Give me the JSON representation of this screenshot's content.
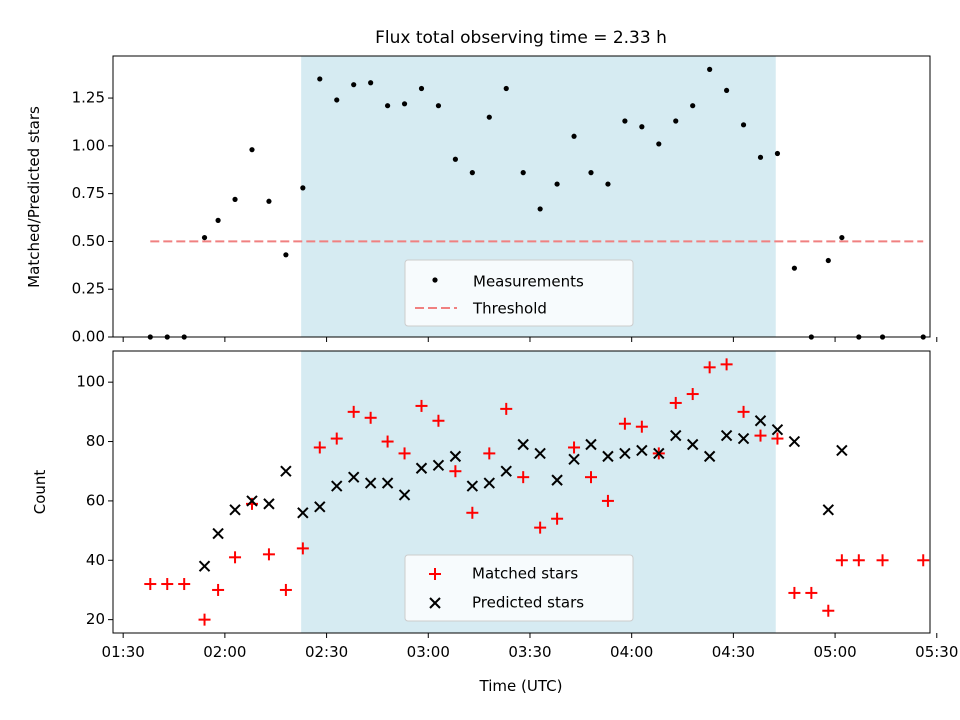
{
  "chart_data": {
    "type": "scatter",
    "title": "Flux total observing time = 2.33 h",
    "xlabel": "Time (UTC)",
    "xlim_minutes": [
      90,
      331
    ],
    "xticks": [
      {
        "minutes": 93,
        "label": "01:30"
      },
      {
        "minutes": 123,
        "label": "02:00"
      },
      {
        "minutes": 153,
        "label": "02:30"
      },
      {
        "minutes": 183,
        "label": "03:00"
      },
      {
        "minutes": 213,
        "label": "03:30"
      },
      {
        "minutes": 243,
        "label": "04:00"
      },
      {
        "minutes": 273,
        "label": "04:30"
      },
      {
        "minutes": 303,
        "label": "05:00"
      },
      {
        "minutes": 333,
        "label": "05:30"
      }
    ],
    "shaded_interval_minutes": [
      145.5,
      285.5
    ],
    "top": {
      "ylabel": "Matched/Predicted stars",
      "ylim": [
        0,
        1.47
      ],
      "yticks": [
        "0.00",
        "0.25",
        "0.50",
        "0.75",
        "1.00",
        "1.25"
      ],
      "threshold": {
        "value": 0.5,
        "x_range_minutes": [
          101,
          329
        ],
        "color": "#f08080"
      },
      "legend": {
        "position": "lower center",
        "entries": [
          "Measurements",
          "Threshold"
        ]
      },
      "points": [
        [
          101,
          0.0
        ],
        [
          106,
          0.0
        ],
        [
          111,
          0.0
        ],
        [
          117,
          0.52
        ],
        [
          121,
          0.61
        ],
        [
          126,
          0.72
        ],
        [
          131,
          0.98
        ],
        [
          136,
          0.71
        ],
        [
          141,
          0.43
        ],
        [
          146,
          0.78
        ],
        [
          151,
          1.35
        ],
        [
          156,
          1.24
        ],
        [
          161,
          1.32
        ],
        [
          166,
          1.33
        ],
        [
          171,
          1.21
        ],
        [
          176,
          1.22
        ],
        [
          181,
          1.3
        ],
        [
          186,
          1.21
        ],
        [
          191,
          0.93
        ],
        [
          196,
          0.86
        ],
        [
          201,
          1.15
        ],
        [
          206,
          1.3
        ],
        [
          211,
          0.86
        ],
        [
          216,
          0.67
        ],
        [
          221,
          0.8
        ],
        [
          226,
          1.05
        ],
        [
          231,
          0.86
        ],
        [
          236,
          0.8
        ],
        [
          241,
          1.13
        ],
        [
          246,
          1.1
        ],
        [
          251,
          1.01
        ],
        [
          256,
          1.13
        ],
        [
          261,
          1.21
        ],
        [
          266,
          1.4
        ],
        [
          271,
          1.29
        ],
        [
          276,
          1.11
        ],
        [
          281,
          0.94
        ],
        [
          286,
          0.96
        ],
        [
          291,
          0.36
        ],
        [
          296,
          0.0
        ],
        [
          301,
          0.4
        ],
        [
          305,
          0.52
        ],
        [
          310,
          0.0
        ],
        [
          317,
          0.0
        ],
        [
          329,
          0.0
        ]
      ]
    },
    "bottom": {
      "ylabel": "Count",
      "ylim": [
        15.5,
        110.5
      ],
      "yticks": [
        "20",
        "40",
        "60",
        "80",
        "100"
      ],
      "legend": {
        "position": "lower center",
        "entries": [
          "Matched stars",
          "Predicted stars"
        ]
      },
      "series": [
        {
          "name": "Matched stars",
          "marker": "+",
          "color": "#ff0000",
          "points": [
            [
              101,
              32
            ],
            [
              106,
              32
            ],
            [
              111,
              32
            ],
            [
              117,
              20
            ],
            [
              121,
              30
            ],
            [
              126,
              41
            ],
            [
              131,
              59
            ],
            [
              136,
              42
            ],
            [
              141,
              30
            ],
            [
              146,
              44
            ],
            [
              151,
              78
            ],
            [
              156,
              81
            ],
            [
              161,
              90
            ],
            [
              166,
              88
            ],
            [
              171,
              80
            ],
            [
              176,
              76
            ],
            [
              181,
              92
            ],
            [
              186,
              87
            ],
            [
              191,
              70
            ],
            [
              196,
              56
            ],
            [
              201,
              76
            ],
            [
              206,
              91
            ],
            [
              211,
              68
            ],
            [
              216,
              51
            ],
            [
              221,
              54
            ],
            [
              226,
              78
            ],
            [
              231,
              68
            ],
            [
              236,
              60
            ],
            [
              241,
              86
            ],
            [
              246,
              85
            ],
            [
              251,
              76
            ],
            [
              256,
              93
            ],
            [
              261,
              96
            ],
            [
              266,
              105
            ],
            [
              271,
              106
            ],
            [
              276,
              90
            ],
            [
              281,
              82
            ],
            [
              286,
              81
            ],
            [
              291,
              29
            ],
            [
              296,
              29
            ],
            [
              301,
              23
            ],
            [
              305,
              40
            ],
            [
              310,
              40
            ],
            [
              317,
              40
            ],
            [
              329,
              40
            ]
          ]
        },
        {
          "name": "Predicted stars",
          "marker": "x",
          "color": "#000000",
          "points": [
            [
              117,
              38
            ],
            [
              121,
              49
            ],
            [
              126,
              57
            ],
            [
              131,
              60
            ],
            [
              136,
              59
            ],
            [
              141,
              70
            ],
            [
              146,
              56
            ],
            [
              151,
              58
            ],
            [
              156,
              65
            ],
            [
              161,
              68
            ],
            [
              166,
              66
            ],
            [
              171,
              66
            ],
            [
              176,
              62
            ],
            [
              181,
              71
            ],
            [
              186,
              72
            ],
            [
              191,
              75
            ],
            [
              196,
              65
            ],
            [
              201,
              66
            ],
            [
              206,
              70
            ],
            [
              211,
              79
            ],
            [
              216,
              76
            ],
            [
              221,
              67
            ],
            [
              226,
              74
            ],
            [
              231,
              79
            ],
            [
              236,
              75
            ],
            [
              241,
              76
            ],
            [
              246,
              77
            ],
            [
              251,
              76
            ],
            [
              256,
              82
            ],
            [
              261,
              79
            ],
            [
              266,
              75
            ],
            [
              271,
              82
            ],
            [
              276,
              81
            ],
            [
              281,
              87
            ],
            [
              286,
              84
            ],
            [
              291,
              80
            ],
            [
              301,
              57
            ],
            [
              305,
              77
            ]
          ]
        }
      ]
    }
  }
}
